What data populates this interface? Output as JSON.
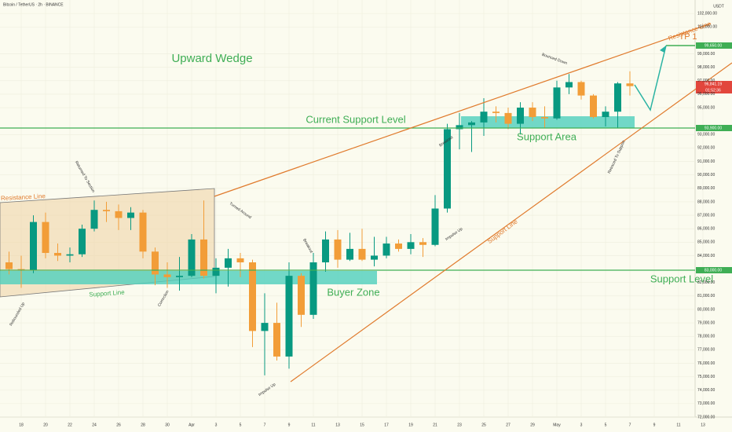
{
  "chart_data": {
    "type": "candlestick",
    "title": "Bitcoin / TetherUS · 2h · BINANCE",
    "y_unit": "USDT",
    "annotations": [
      "Upward Wedge",
      "Current Support Level",
      "Support Area",
      "Buyer Zone",
      "Support Level",
      "Resistance Line",
      "Resistance Line",
      "Support Line",
      "Support Line",
      "TP 1",
      "Rebounded Up",
      "Returned To Section",
      "Correction",
      "Turned Around",
      "Breakout",
      "Impulse Up",
      "Impulse Up",
      "Breakout",
      "Bounced Down",
      "Retraced To Support"
    ],
    "price_labels": [
      "96,841.19",
      "01:52:36",
      "93,900.00",
      "83,000.00",
      "99,650.00"
    ],
    "categories": [
      null,
      "18",
      null,
      "20",
      null,
      "22",
      null,
      "24",
      null,
      "26",
      null,
      "28",
      null,
      "30",
      null,
      "Apr",
      null,
      "3",
      null,
      "5",
      null,
      "7",
      null,
      "9",
      null,
      "11",
      null,
      "13",
      null,
      "15",
      null,
      "17",
      null,
      "19",
      null,
      "21",
      null,
      "23",
      null,
      "25",
      null,
      "27",
      null,
      "29",
      null,
      "May",
      null,
      "3",
      null,
      "5",
      null,
      "7",
      null,
      "9",
      null,
      "11",
      null,
      "13"
    ],
    "series": [
      {
        "up_color": "#089981",
        "down_color": "#f29d38",
        "values": [
          [
            83500,
            84300,
            82600,
            83000
          ],
          [
            83000,
            84000,
            81600,
            82900
          ],
          [
            82900,
            87000,
            82700,
            86500
          ],
          [
            86500,
            87200,
            83800,
            84200
          ],
          [
            84200,
            84900,
            83600,
            84000
          ],
          [
            84000,
            84600,
            83500,
            84100
          ],
          [
            84100,
            86300,
            83900,
            86000
          ],
          [
            86000,
            88100,
            85800,
            87400
          ],
          [
            87400,
            88000,
            86500,
            87300
          ],
          [
            87300,
            87800,
            85900,
            86800
          ],
          [
            86800,
            87600,
            85900,
            87200
          ],
          [
            87200,
            87400,
            83800,
            84300
          ],
          [
            84300,
            84600,
            81800,
            82600
          ],
          [
            82600,
            83500,
            81600,
            82400
          ],
          [
            82400,
            83900,
            81400,
            82500
          ],
          [
            82500,
            85600,
            82400,
            85200
          ],
          [
            85200,
            88100,
            82300,
            82500
          ],
          [
            82500,
            83800,
            81200,
            83100
          ],
          [
            83100,
            84500,
            81700,
            83800
          ],
          [
            83800,
            84200,
            82400,
            83500
          ],
          [
            83500,
            83700,
            77200,
            78400
          ],
          [
            78400,
            81200,
            75100,
            79000
          ],
          [
            79000,
            80500,
            76200,
            76500
          ],
          [
            76500,
            83500,
            75600,
            82500
          ],
          [
            82500,
            82700,
            78700,
            79600
          ],
          [
            79600,
            84200,
            79300,
            83500
          ],
          [
            83500,
            85800,
            82800,
            85200
          ],
          [
            85200,
            85900,
            83100,
            83700
          ],
          [
            83700,
            85700,
            83600,
            84500
          ],
          [
            84500,
            86000,
            83600,
            83700
          ],
          [
            83700,
            85400,
            83200,
            84000
          ],
          [
            84000,
            85400,
            83800,
            84900
          ],
          [
            84900,
            85200,
            84300,
            84500
          ],
          [
            84500,
            85600,
            84100,
            85000
          ],
          [
            85000,
            85300,
            83900,
            84800
          ],
          [
            84800,
            88500,
            84700,
            87500
          ],
          [
            87500,
            93800,
            87200,
            93400
          ],
          [
            93400,
            94600,
            91900,
            93700
          ],
          [
            93700,
            94000,
            91700,
            93900
          ],
          [
            93900,
            95700,
            92900,
            94700
          ],
          [
            94700,
            95100,
            93900,
            94600
          ],
          [
            94600,
            95000,
            93400,
            93800
          ],
          [
            93800,
            95400,
            93000,
            95000
          ],
          [
            95000,
            95400,
            94000,
            94300
          ],
          [
            94300,
            95100,
            93500,
            94200
          ],
          [
            94200,
            97000,
            94100,
            96500
          ],
          [
            96500,
            97500,
            96000,
            96900
          ],
          [
            96900,
            97000,
            95600,
            95900
          ],
          [
            95900,
            96000,
            94200,
            94300
          ],
          [
            94300,
            95100,
            93600,
            94700
          ],
          [
            94700,
            96900,
            93500,
            96800
          ],
          [
            96800,
            97700,
            95900,
            96600
          ],
          null,
          null,
          null,
          null,
          null,
          null
        ]
      }
    ],
    "ylim": [
      72000,
      103000
    ],
    "yticks": [
      {
        "value": 72000,
        "label": "72,000.00"
      },
      {
        "value": 73000,
        "label": "73,000.00"
      },
      {
        "value": 74000,
        "label": "74,000.00"
      },
      {
        "value": 75000,
        "label": "75,000.00"
      },
      {
        "value": 76000,
        "label": "76,000.00"
      },
      {
        "value": 77000,
        "label": "77,000.00"
      },
      {
        "value": 78000,
        "label": "78,000.00"
      },
      {
        "value": 79000,
        "label": "79,000.00"
      },
      {
        "value": 80000,
        "label": "80,000.00"
      },
      {
        "value": 81000,
        "label": "81,000.00"
      },
      {
        "value": 82000,
        "label": "82,000.00"
      },
      {
        "value": 84000,
        "label": "84,000.00"
      },
      {
        "value": 85000,
        "label": "85,000.00"
      },
      {
        "value": 86000,
        "label": "86,000.00"
      },
      {
        "value": 87000,
        "label": "87,000.00"
      },
      {
        "value": 88000,
        "label": "88,000.00"
      },
      {
        "value": 89000,
        "label": "89,000.00"
      },
      {
        "value": 90000,
        "label": "90,000.00"
      },
      {
        "value": 91000,
        "label": "91,000.00"
      },
      {
        "value": 92000,
        "label": "92,000.00"
      },
      {
        "value": 93000,
        "label": "93,000.00"
      },
      {
        "value": 95000,
        "label": "95,000.00"
      },
      {
        "value": 96000,
        "label": "96,000.00"
      },
      {
        "value": 97000,
        "label": "97,000.00"
      },
      {
        "value": 98000,
        "label": "98,000.00"
      },
      {
        "value": 99000,
        "label": "99,000.00"
      },
      {
        "value": 101000,
        "label": "101,000.00"
      },
      {
        "value": 102000,
        "label": "102,000.00"
      }
    ],
    "grid": true
  }
}
